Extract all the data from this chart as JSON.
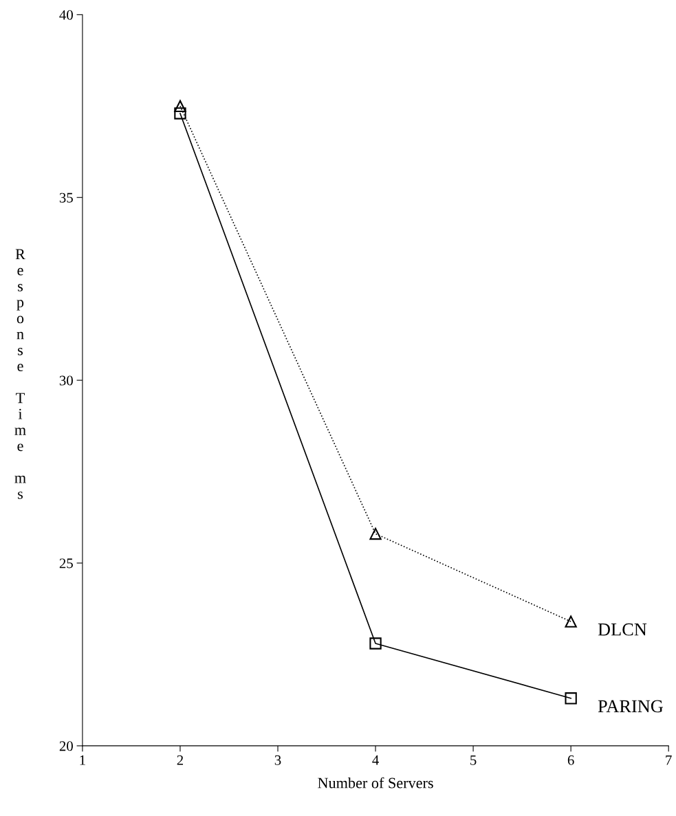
{
  "chart_data": {
    "type": "line",
    "xlabel": "Number of Servers",
    "ylabel": "Response Time ms",
    "x": [
      2,
      4,
      6
    ],
    "series": [
      {
        "name": "DLCN",
        "color": "#000000",
        "values": [
          37.5,
          25.8,
          23.4
        ],
        "marker": "triangle",
        "line_style": "dotted"
      },
      {
        "name": "PARING",
        "color": "#000000",
        "values": [
          37.3,
          22.8,
          21.3
        ],
        "marker": "square",
        "line_style": "solid"
      }
    ],
    "xlim": [
      1,
      7
    ],
    "xticks": [
      1,
      2,
      3,
      4,
      5,
      6,
      7
    ],
    "ylim": [
      20,
      40
    ],
    "yticks": [
      20,
      25,
      30,
      35,
      40
    ],
    "grid": false,
    "legend": false
  }
}
